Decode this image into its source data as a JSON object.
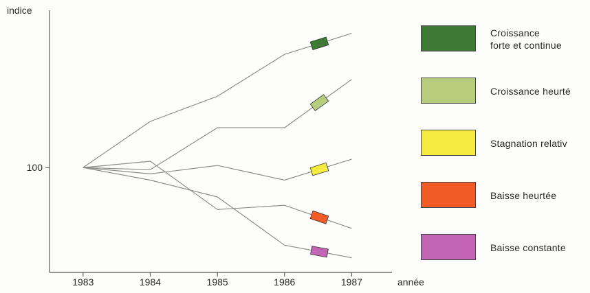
{
  "chart_data": {
    "type": "line",
    "xlabel": "année",
    "ylabel": "indice",
    "x": [
      1983,
      1984,
      1985,
      1986,
      1987
    ],
    "x_tick_labels": [
      "1983",
      "1984",
      "1985",
      "1986",
      "1987"
    ],
    "y_tick_values": [
      100
    ],
    "y_tick_labels": [
      "100"
    ],
    "xlim": [
      1982.5,
      1987.6
    ],
    "ylim": [
      50,
      175
    ],
    "grid": false,
    "legend_position": "right",
    "series": [
      {
        "name": "Croissance\nforte et continue",
        "color": "#3d7b34",
        "values": [
          100,
          122,
          134,
          154,
          164
        ]
      },
      {
        "name": "Croissance heurté",
        "color": "#b7cd7d",
        "values": [
          100,
          99,
          119,
          119,
          142
        ]
      },
      {
        "name": "Stagnation relativ",
        "color": "#f6ec3f",
        "values": [
          100,
          97,
          101,
          94,
          104
        ]
      },
      {
        "name": "Baisse heurtée",
        "color": "#f15b25",
        "values": [
          100,
          103,
          80,
          82,
          71
        ]
      },
      {
        "name": "Baisse constante",
        "color": "#c165b4",
        "values": [
          100,
          94,
          86,
          63,
          57
        ]
      }
    ]
  }
}
